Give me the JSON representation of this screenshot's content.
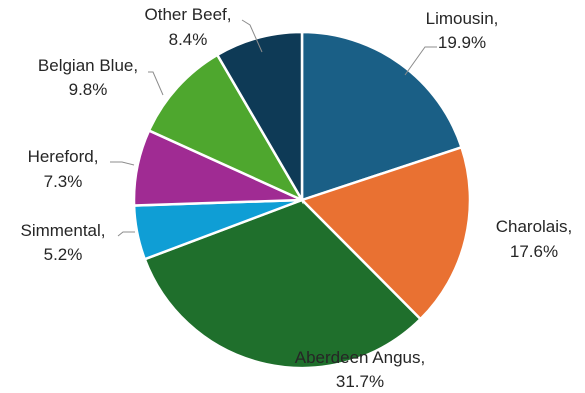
{
  "chart_data": {
    "type": "pie",
    "title": "",
    "slices": [
      {
        "label": "Limousin",
        "value": 19.9,
        "display": "19.9%",
        "color": "#1A5F86"
      },
      {
        "label": "Charolais",
        "value": 17.6,
        "display": "17.6%",
        "color": "#E97132"
      },
      {
        "label": "Aberdeen Angus",
        "value": 31.7,
        "display": "31.7%",
        "color": "#1F6F2C"
      },
      {
        "label": "Simmental",
        "value": 5.2,
        "display": "5.2%",
        "color": "#0F9ED5"
      },
      {
        "label": "Hereford",
        "value": 7.3,
        "display": "7.3%",
        "color": "#A02B93"
      },
      {
        "label": "Belgian Blue",
        "value": 9.8,
        "display": "9.8%",
        "color": "#4EA72E"
      },
      {
        "label": "Other Beef",
        "value": 8.4,
        "display": "8.4%",
        "color": "#0E3A56"
      }
    ],
    "legend": "none",
    "data_labels": "outside-with-leader-lines"
  }
}
